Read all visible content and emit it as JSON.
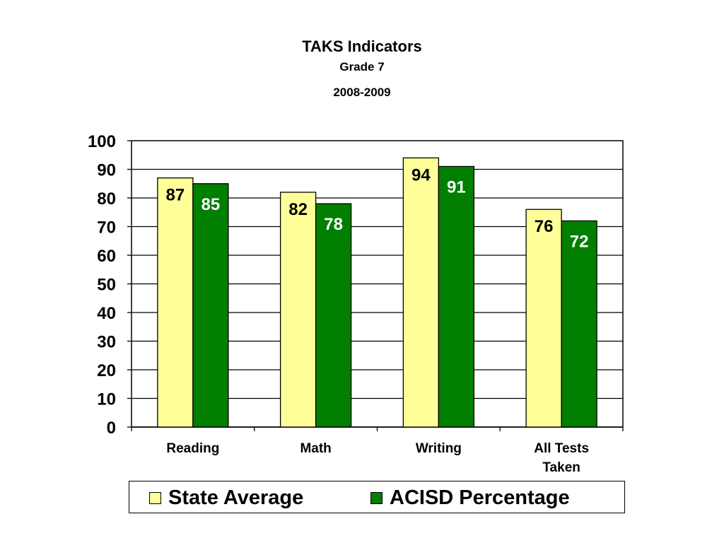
{
  "chart_data": {
    "type": "bar",
    "title": "TAKS Indicators",
    "subtitle": "Grade 7",
    "period": "2008-2009",
    "categories": [
      [
        "Reading"
      ],
      [
        "Math"
      ],
      [
        "Writing"
      ],
      [
        "All Tests",
        "Taken"
      ]
    ],
    "series": [
      {
        "name": "State Average",
        "values": [
          87,
          82,
          94,
          76
        ],
        "color": "#FFFF99",
        "label_color": "#000000"
      },
      {
        "name": "ACISD Percentage",
        "values": [
          85,
          78,
          91,
          72
        ],
        "color": "#007F00",
        "label_color": "#FFFFFF"
      }
    ],
    "ylim": [
      0,
      100
    ],
    "yticks": [
      0,
      10,
      20,
      30,
      40,
      50,
      60,
      70,
      80,
      90,
      100
    ],
    "grid": true,
    "legend_position": "bottom"
  }
}
